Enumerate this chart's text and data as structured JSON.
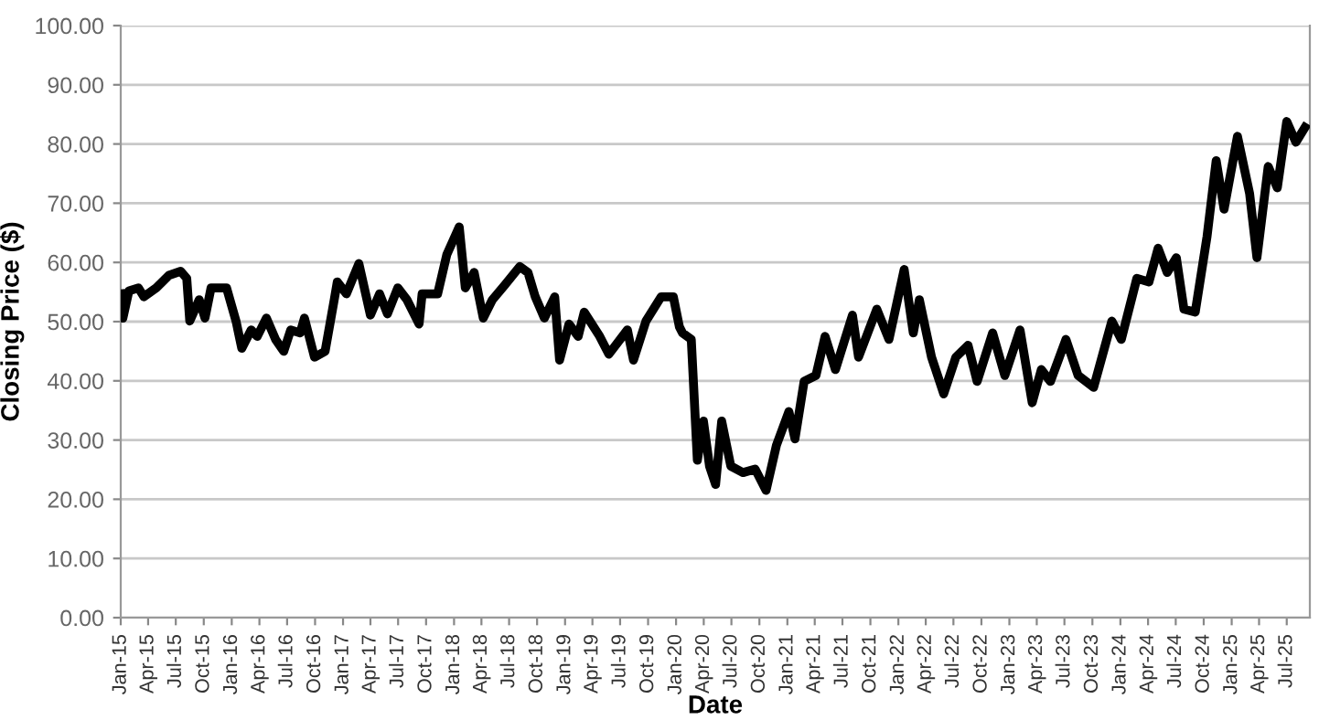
{
  "chart_data": {
    "type": "line",
    "xlabel": "Date",
    "ylabel": "Closing Price ($)",
    "x": [
      "2015-01-01",
      "2015-01-08",
      "2015-01-28",
      "2015-02-28",
      "2015-03-18",
      "2015-04-28",
      "2015-06-08",
      "2015-07-17",
      "2015-08-06",
      "2015-08-16",
      "2015-09-16",
      "2015-10-05",
      "2015-10-25",
      "2015-12-15",
      "2016-01-15",
      "2016-02-03",
      "2016-03-05",
      "2016-03-25",
      "2016-04-24",
      "2016-05-24",
      "2016-06-20",
      "2016-07-13",
      "2016-08-13",
      "2016-08-27",
      "2016-09-29",
      "2016-11-03",
      "2016-12-03",
      "2016-12-13",
      "2017-01-12",
      "2017-02-22",
      "2017-04-01",
      "2017-05-01",
      "2017-05-27",
      "2017-06-30",
      "2017-07-30",
      "2017-09-08",
      "2017-09-18",
      "2017-11-08",
      "2017-12-08",
      "2018-01-18",
      "2018-02-07",
      "2018-03-08",
      "2018-04-07",
      "2018-05-07",
      "2018-06-17",
      "2018-08-05",
      "2018-09-01",
      "2018-09-25",
      "2018-10-25",
      "2018-11-28",
      "2018-12-14",
      "2019-01-14",
      "2019-02-13",
      "2019-03-05",
      "2019-04-25",
      "2019-05-25",
      "2019-07-25",
      "2019-08-14",
      "2019-09-24",
      "2019-11-13",
      "2019-12-23",
      "2020-01-12",
      "2020-01-22",
      "2020-02-20",
      "2020-03-11",
      "2020-03-31",
      "2020-04-20",
      "2020-05-10",
      "2020-05-30",
      "2020-06-29",
      "2020-08-08",
      "2020-09-17",
      "2020-10-23",
      "2020-11-26",
      "2021-01-06",
      "2021-01-26",
      "2021-02-25",
      "2021-04-05",
      "2021-05-05",
      "2021-06-08",
      "2021-08-03",
      "2021-08-23",
      "2021-10-22",
      "2021-12-01",
      "2022-01-20",
      "2022-02-19",
      "2022-03-11",
      "2022-04-20",
      "2022-05-30",
      "2022-07-09",
      "2022-08-18",
      "2022-09-17",
      "2022-11-07",
      "2022-12-17",
      "2023-02-05",
      "2023-03-17",
      "2023-04-16",
      "2023-05-16",
      "2023-07-06",
      "2023-08-15",
      "2023-10-05",
      "2023-12-04",
      "2024-01-04",
      "2024-02-24",
      "2024-04-04",
      "2024-05-04",
      "2024-06-03",
      "2024-07-03",
      "2024-07-28",
      "2024-09-03",
      "2024-10-12",
      "2024-11-11",
      "2024-12-07",
      "2025-01-20",
      "2025-03-01",
      "2025-03-25",
      "2025-05-01",
      "2025-05-31",
      "2025-07-01",
      "2025-07-31",
      "2025-08-30"
    ],
    "series": [
      {
        "color": "#000000",
        "values": [
          54.7,
          50.6,
          55.2,
          55.7,
          54.2,
          55.7,
          57.8,
          58.5,
          57.3,
          50.1,
          53.7,
          50.6,
          55.7,
          55.7,
          50.1,
          45.5,
          48.6,
          47.5,
          50.6,
          47.0,
          45.0,
          48.6,
          48.1,
          50.6,
          44.0,
          45.0,
          53.7,
          56.7,
          54.7,
          59.8,
          51.1,
          54.7,
          51.3,
          55.7,
          53.7,
          49.6,
          54.7,
          54.7,
          61.3,
          66.0,
          55.7,
          58.3,
          50.6,
          53.7,
          56.2,
          59.3,
          58.3,
          54.2,
          50.6,
          54.2,
          43.5,
          49.6,
          47.5,
          51.6,
          47.5,
          44.5,
          48.6,
          43.5,
          50.1,
          54.2,
          54.2,
          49.1,
          48.1,
          47.0,
          26.6,
          33.2,
          25.6,
          22.5,
          33.2,
          25.6,
          24.5,
          25.1,
          21.5,
          29.1,
          34.8,
          30.2,
          39.9,
          40.9,
          47.5,
          41.9,
          51.1,
          44.0,
          52.1,
          47.0,
          58.8,
          48.1,
          53.7,
          44.0,
          37.8,
          44.0,
          46.0,
          39.9,
          48.1,
          40.9,
          48.6,
          36.3,
          41.9,
          39.9,
          47.0,
          40.9,
          38.9,
          50.1,
          47.0,
          57.3,
          56.7,
          62.4,
          58.3,
          60.8,
          52.1,
          51.6,
          64.4,
          77.2,
          69.0,
          81.3,
          71.6,
          60.8,
          76.2,
          72.6,
          83.8,
          80.3,
          82.8
        ]
      }
    ],
    "xlim": [
      "2015-01-01",
      "2025-09-15"
    ],
    "xticks": [
      {
        "value": "2015-01-01",
        "label": "Jan-15"
      },
      {
        "value": "2015-04-01",
        "label": "Apr-15"
      },
      {
        "value": "2015-07-01",
        "label": "Jul-15"
      },
      {
        "value": "2015-10-01",
        "label": "Oct-15"
      },
      {
        "value": "2016-01-01",
        "label": "Jan-16"
      },
      {
        "value": "2016-04-01",
        "label": "Apr-16"
      },
      {
        "value": "2016-07-01",
        "label": "Jul-16"
      },
      {
        "value": "2016-10-01",
        "label": "Oct-16"
      },
      {
        "value": "2017-01-01",
        "label": "Jan-17"
      },
      {
        "value": "2017-04-01",
        "label": "Apr-17"
      },
      {
        "value": "2017-07-01",
        "label": "Jul-17"
      },
      {
        "value": "2017-10-01",
        "label": "Oct-17"
      },
      {
        "value": "2018-01-01",
        "label": "Jan-18"
      },
      {
        "value": "2018-04-01",
        "label": "Apr-18"
      },
      {
        "value": "2018-07-01",
        "label": "Jul-18"
      },
      {
        "value": "2018-10-01",
        "label": "Oct-18"
      },
      {
        "value": "2019-01-01",
        "label": "Jan-19"
      },
      {
        "value": "2019-04-01",
        "label": "Apr-19"
      },
      {
        "value": "2019-07-01",
        "label": "Jul-19"
      },
      {
        "value": "2019-10-01",
        "label": "Oct-19"
      },
      {
        "value": "2020-01-01",
        "label": "Jan-20"
      },
      {
        "value": "2020-04-01",
        "label": "Apr-20"
      },
      {
        "value": "2020-07-01",
        "label": "Jul-20"
      },
      {
        "value": "2020-10-01",
        "label": "Oct-20"
      },
      {
        "value": "2021-01-01",
        "label": "Jan-21"
      },
      {
        "value": "2021-04-01",
        "label": "Apr-21"
      },
      {
        "value": "2021-07-01",
        "label": "Jul-21"
      },
      {
        "value": "2021-10-01",
        "label": "Oct-21"
      },
      {
        "value": "2022-01-01",
        "label": "Jan-22"
      },
      {
        "value": "2022-04-01",
        "label": "Apr-22"
      },
      {
        "value": "2022-07-01",
        "label": "Jul-22"
      },
      {
        "value": "2022-10-01",
        "label": "Oct-22"
      },
      {
        "value": "2023-01-01",
        "label": "Jan-23"
      },
      {
        "value": "2023-04-01",
        "label": "Apr-23"
      },
      {
        "value": "2023-07-01",
        "label": "Jul-23"
      },
      {
        "value": "2023-10-01",
        "label": "Oct-23"
      },
      {
        "value": "2024-01-01",
        "label": "Jan-24"
      },
      {
        "value": "2024-04-01",
        "label": "Apr-24"
      },
      {
        "value": "2024-07-01",
        "label": "Jul-24"
      },
      {
        "value": "2024-10-01",
        "label": "Oct-24"
      },
      {
        "value": "2025-01-01",
        "label": "Jan-25"
      },
      {
        "value": "2025-04-01",
        "label": "Apr-25"
      },
      {
        "value": "2025-07-01",
        "label": "Jul-25"
      }
    ],
    "ylim": [
      0,
      100
    ],
    "yticks": [
      {
        "value": 0,
        "label": "0.00"
      },
      {
        "value": 10,
        "label": "10.00"
      },
      {
        "value": 20,
        "label": "20.00"
      },
      {
        "value": 30,
        "label": "30.00"
      },
      {
        "value": 40,
        "label": "40.00"
      },
      {
        "value": 50,
        "label": "50.00"
      },
      {
        "value": 60,
        "label": "60.00"
      },
      {
        "value": 70,
        "label": "70.00"
      },
      {
        "value": 80,
        "label": "80.00"
      },
      {
        "value": 90,
        "label": "90.00"
      },
      {
        "value": 100,
        "label": "100.00"
      }
    ],
    "grid": "y",
    "line_style": "solid"
  }
}
